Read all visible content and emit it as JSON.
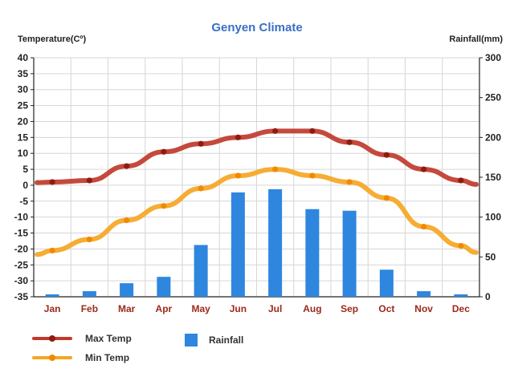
{
  "chart_data": {
    "type": "bar+line",
    "title": "Genyen Climate",
    "ylabel_left": "Temperature(Cº)",
    "ylabel_right": "Rainfall(mm)",
    "categories": [
      "Jan",
      "Feb",
      "Mar",
      "Apr",
      "May",
      "Jun",
      "Jul",
      "Aug",
      "Sep",
      "Oct",
      "Nov",
      "Dec"
    ],
    "ylim_left": [
      -35,
      40
    ],
    "yticks_left": [
      40,
      35,
      30,
      25,
      20,
      15,
      10,
      5,
      0,
      -5,
      -10,
      -15,
      -20,
      -25,
      -30,
      -35
    ],
    "ylim_right": [
      0,
      300
    ],
    "yticks_right": [
      300,
      250,
      200,
      150,
      100,
      50,
      0
    ],
    "grid": true,
    "legend_position": "bottom-left",
    "series": [
      {
        "name": "Max Temp",
        "type": "line",
        "axis": "left",
        "color": "#C0392B",
        "marker_color": "#8E1C12",
        "values": [
          1,
          1.5,
          6,
          10.5,
          13,
          15,
          17,
          17,
          13.5,
          9.5,
          5,
          1.5
        ]
      },
      {
        "name": "Min Temp",
        "type": "line",
        "axis": "left",
        "color": "#F5A623",
        "marker_color": "#F08A00",
        "values": [
          -20.5,
          -17,
          -11,
          -6.5,
          -1,
          3,
          5,
          3,
          1,
          -4,
          -13,
          -19
        ]
      },
      {
        "name": "Rainfall",
        "type": "bar",
        "axis": "right",
        "color": "#2E86DE",
        "values": [
          3,
          7,
          17,
          25,
          65,
          131,
          135,
          110,
          108,
          34,
          7,
          3
        ]
      }
    ]
  }
}
